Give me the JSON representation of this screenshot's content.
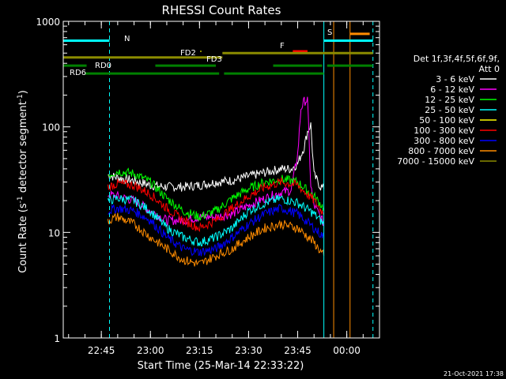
{
  "chart_data": {
    "type": "line",
    "title": "RHESSI Count Rates",
    "xlabel": "Start Time (25-Mar-14 22:33:22)",
    "ylabel_main": "Count Rate (s",
    "ylabel_sup1": "-1",
    "ylabel_mid": " detector segment",
    "ylabel_sup2": "-1",
    "ylabel_end": ")",
    "yscale": "log",
    "ylim": [
      1,
      1000
    ],
    "xlim": [
      "22:33:22",
      "00:10:00"
    ],
    "x_ticks": [
      "22:45",
      "23:00",
      "23:15",
      "23:30",
      "23:45",
      "00:00"
    ],
    "y_ticks": [
      "1",
      "10",
      "100",
      "1000"
    ],
    "legend": {
      "placement": "right",
      "header1": "Det 1f,3f,4f,5f,6f,9f,",
      "header2": "Att 0",
      "entries": [
        {
          "label": "3 - 6 keV",
          "color": "#ffffff"
        },
        {
          "label": "6 - 12 keV",
          "color": "#ff00ff"
        },
        {
          "label": "12 - 25 keV",
          "color": "#00ff00"
        },
        {
          "label": "25 - 50 keV",
          "color": "#00ffff"
        },
        {
          "label": "50 - 100 keV",
          "color": "#ffff00"
        },
        {
          "label": "100 - 300 keV",
          "color": "#ff0000"
        },
        {
          "label": "300 - 800 keV",
          "color": "#0000ff"
        },
        {
          "label": "800 - 7000 keV",
          "color": "#ff8c00"
        },
        {
          "label": "7000 - 15000 keV",
          "color": "#8b8b00"
        }
      ]
    },
    "series": [
      {
        "name": "3 - 6 keV",
        "color": "#ffffff",
        "x": [
          "22:47",
          "22:50",
          "22:55",
          "23:00",
          "23:05",
          "23:10",
          "23:15",
          "23:20",
          "23:25",
          "23:30",
          "23:35",
          "23:40",
          "23:43",
          "23:45",
          "23:47",
          "23:48",
          "23:49",
          "23:50",
          "23:52",
          "23:53"
        ],
        "y": [
          35,
          33,
          31,
          28,
          27,
          27,
          28,
          30,
          31,
          34,
          37,
          40,
          40,
          45,
          65,
          90,
          105,
          35,
          27,
          26
        ]
      },
      {
        "name": "6 - 12 keV",
        "color": "#ff00ff",
        "x": [
          "22:47",
          "22:50",
          "22:55",
          "23:00",
          "23:05",
          "23:10",
          "23:15",
          "23:20",
          "23:25",
          "23:30",
          "23:35",
          "23:40",
          "23:43",
          "23:45",
          "23:46",
          "23:47",
          "23:48",
          "23:49",
          "23:50",
          "23:52",
          "23:53"
        ],
        "y": [
          23,
          22,
          20,
          16,
          13,
          13,
          14,
          14,
          15,
          18,
          21,
          24,
          25,
          55,
          150,
          175,
          180,
          28,
          18,
          14,
          12
        ]
      },
      {
        "name": "12 - 25 keV",
        "color": "#00ff00",
        "x": [
          "22:47",
          "22:50",
          "22:55",
          "23:00",
          "23:05",
          "23:10",
          "23:15",
          "23:20",
          "23:25",
          "23:30",
          "23:35",
          "23:40",
          "23:45",
          "23:50",
          "23:53"
        ],
        "y": [
          35,
          38,
          36,
          30,
          21,
          16,
          14,
          16,
          21,
          26,
          30,
          32,
          30,
          22,
          17
        ]
      },
      {
        "name": "25 - 50 keV",
        "color": "#00ffff",
        "x": [
          "22:47",
          "22:50",
          "22:55",
          "23:00",
          "23:05",
          "23:10",
          "23:15",
          "23:20",
          "23:25",
          "23:30",
          "23:35",
          "23:40",
          "23:45",
          "23:50",
          "23:53"
        ],
        "y": [
          20,
          21,
          20,
          16,
          11,
          9,
          8,
          9,
          11,
          16,
          19,
          21,
          19,
          15,
          12
        ]
      },
      {
        "name": "100 - 300 keV",
        "color": "#ff0000",
        "x": [
          "22:47",
          "22:50",
          "22:55",
          "23:00",
          "23:05",
          "23:10",
          "23:15",
          "23:20",
          "23:25",
          "23:30",
          "23:35",
          "23:40",
          "23:45",
          "23:50",
          "23:53"
        ],
        "y": [
          27,
          29,
          28,
          23,
          17,
          13,
          11,
          13,
          17,
          22,
          27,
          30,
          28,
          20,
          15
        ]
      },
      {
        "name": "300 - 800 keV",
        "color": "#0000ff",
        "x": [
          "22:47",
          "22:50",
          "22:55",
          "23:00",
          "23:05",
          "23:10",
          "23:15",
          "23:20",
          "23:25",
          "23:30",
          "23:35",
          "23:40",
          "23:45",
          "23:50",
          "23:53"
        ],
        "y": [
          16,
          17,
          16,
          13,
          9,
          7,
          6.5,
          7,
          9,
          12,
          15,
          17,
          15,
          11,
          9
        ]
      },
      {
        "name": "800 - 7000 keV",
        "color": "#ff8c00",
        "x": [
          "22:47",
          "22:50",
          "22:55",
          "23:00",
          "23:05",
          "23:10",
          "23:15",
          "23:20",
          "23:25",
          "23:30",
          "23:35",
          "23:40",
          "23:45",
          "23:50",
          "23:53"
        ],
        "y": [
          13,
          14,
          12,
          9,
          7,
          5.5,
          5,
          6,
          7,
          9,
          11,
          12,
          11,
          8,
          6
        ]
      }
    ],
    "flag_bars": [
      {
        "label": "N",
        "color": "#00ffff",
        "y": 655,
        "x0": "22:33:22",
        "x1": "22:47:30"
      },
      {
        "label": "S",
        "color": "#ff8c00",
        "y": 760,
        "x0": "00:01:00",
        "x1": "00:07:00"
      },
      {
        "label": "S",
        "color": "#00ffff",
        "y": 655,
        "x0": "23:53:00",
        "x1": "00:08:00"
      },
      {
        "label": "F",
        "color": "#ff0000",
        "y": 520,
        "x0": "23:43:30",
        "x1": "23:48:00"
      },
      {
        "label": "FD2",
        "color": "#8b8b00",
        "y": 455,
        "x0": "22:33:22",
        "x1": "23:22:00"
      },
      {
        "label": "FD3",
        "color": "#8b8b00",
        "y": 500,
        "x0": "23:22:00",
        "x1": "00:08:00"
      },
      {
        "label": "RD0",
        "color": "#008000",
        "y": 380,
        "x0": "22:33:22",
        "x1": "22:40:30"
      },
      {
        "label": "RD0",
        "color": "#008000",
        "y": 380,
        "x0": "23:01:30",
        "x1": "23:20:00"
      },
      {
        "label": "RD0",
        "color": "#008000",
        "y": 380,
        "x0": "23:37:30",
        "x1": "23:52:30"
      },
      {
        "label": "RD0",
        "color": "#008000",
        "y": 380,
        "x0": "23:54:00",
        "x1": "00:08:00"
      },
      {
        "label": "RD6",
        "color": "#008000",
        "y": 320,
        "x0": "22:40:00",
        "x1": "23:21:00"
      },
      {
        "label": "RD6",
        "color": "#008000",
        "y": 320,
        "x0": "23:22:30",
        "x1": "23:53:00"
      }
    ],
    "bar_labels": [
      {
        "text": "N",
        "color": "#00ffff"
      },
      {
        "text": "S",
        "color": "#ff8c00"
      },
      {
        "text": "F",
        "color": "#ff0000"
      },
      {
        "text": "FD2",
        "color": "#8b8b00"
      },
      {
        "text": "FD3",
        "color": "#8b8b00"
      },
      {
        "text": "RD0",
        "color": "#008000"
      },
      {
        "text": "RD6",
        "color": "#008000"
      }
    ],
    "vlines": [
      {
        "x": "22:33:22",
        "color": "#00ffff",
        "style": "solid"
      },
      {
        "x": "22:47:30",
        "color": "#00ffff",
        "style": "dashed"
      },
      {
        "x": "23:53:00",
        "color": "#00ffff",
        "style": "solid"
      },
      {
        "x": "23:56:00",
        "color": "#ff8c00",
        "style": "solid"
      },
      {
        "x": "00:01:00",
        "color": "#ff8c00",
        "style": "solid"
      },
      {
        "x": "00:08:00",
        "color": "#00ffff",
        "style": "dashed"
      }
    ]
  },
  "footer": {
    "date": "21-Oct-2021 17:38"
  }
}
